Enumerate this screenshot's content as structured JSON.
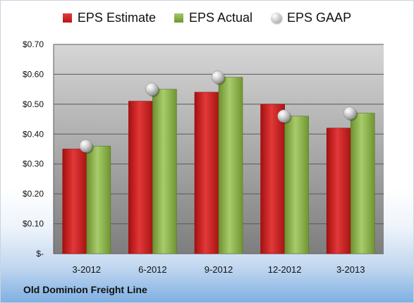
{
  "legend": {
    "estimate": "EPS Estimate",
    "actual": "EPS Actual",
    "gaap": "EPS GAAP"
  },
  "footer": "Old Dominion Freight Line",
  "chart_data": {
    "type": "bar",
    "categories": [
      "3-2012",
      "6-2012",
      "9-2012",
      "12-2012",
      "3-2013"
    ],
    "series": [
      {
        "name": "EPS Estimate",
        "values": [
          0.35,
          0.51,
          0.54,
          0.5,
          0.42
        ],
        "color": "#c81e1e"
      },
      {
        "name": "EPS Actual",
        "values": [
          0.36,
          0.55,
          0.59,
          0.46,
          0.47
        ],
        "color": "#8db04c"
      },
      {
        "name": "EPS GAAP",
        "values": [
          0.36,
          0.55,
          0.59,
          0.46,
          0.47
        ],
        "marker": "circle",
        "color": "#b5b5b5"
      }
    ],
    "ylim": [
      0,
      0.7
    ],
    "yticks": [
      0,
      0.1,
      0.2,
      0.3,
      0.4,
      0.5,
      0.6,
      0.7
    ],
    "ytick_labels": [
      "$-",
      "$0.10",
      "$0.20",
      "$0.30",
      "$0.40",
      "$0.50",
      "$0.60",
      "$0.70"
    ],
    "grid": true,
    "legend_position": "top"
  }
}
